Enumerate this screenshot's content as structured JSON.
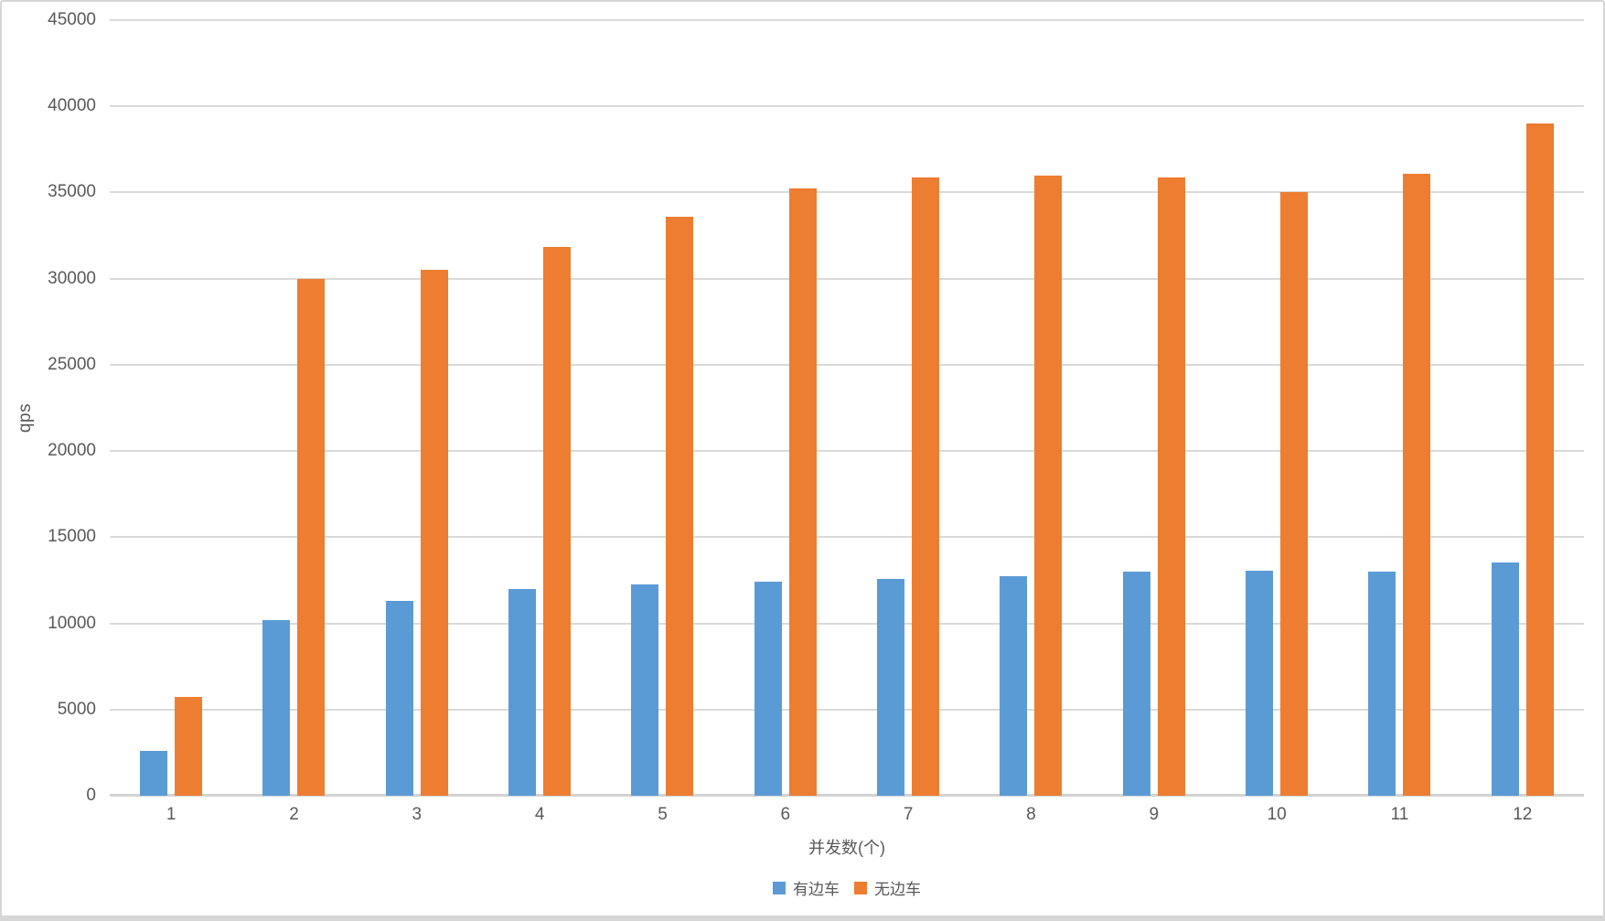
{
  "chart_data": {
    "type": "bar",
    "title": "",
    "xlabel": "并发数(个)",
    "ylabel": "qps",
    "categories": [
      "1",
      "2",
      "3",
      "4",
      "5",
      "6",
      "7",
      "8",
      "9",
      "10",
      "11",
      "12"
    ],
    "series": [
      {
        "name": "有边车",
        "key": "sidecar",
        "color": "#5B9BD5",
        "values": [
          2600,
          10200,
          11300,
          12000,
          12250,
          12400,
          12600,
          12750,
          13000,
          13050,
          13000,
          13550
        ]
      },
      {
        "name": "无边车",
        "key": "no-sidecar",
        "color": "#ED7D31",
        "values": [
          5750,
          30000,
          30500,
          31850,
          33600,
          35250,
          35850,
          36000,
          35850,
          35050,
          36100,
          39000
        ]
      }
    ],
    "ylim": [
      0,
      45000
    ],
    "ytick_step": 5000,
    "yticks": [
      "0",
      "5000",
      "10000",
      "15000",
      "20000",
      "25000",
      "30000",
      "35000",
      "40000",
      "45000"
    ],
    "grid": true,
    "legend_position": "bottom",
    "colors": {
      "gridline": "#d9d9d9",
      "axis_text": "#595959"
    }
  }
}
